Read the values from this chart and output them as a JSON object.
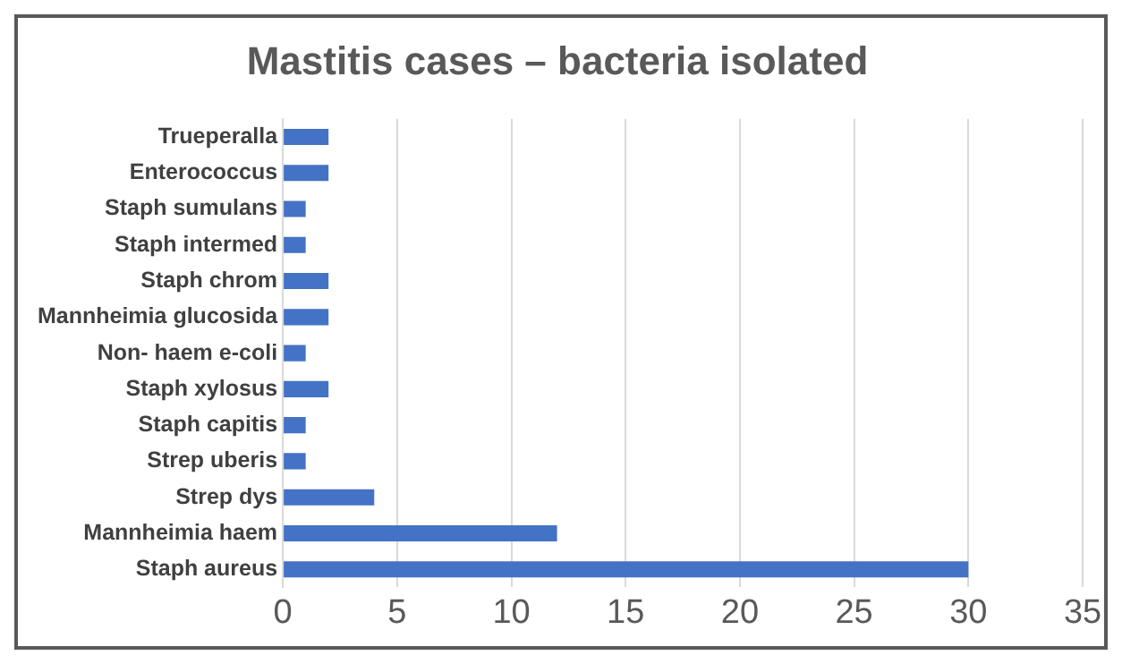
{
  "chart_data": {
    "type": "bar",
    "orientation": "horizontal",
    "title": "Mastitis cases – bacteria isolated",
    "categories": [
      "Trueperalla",
      "Enterococcus",
      "Staph sumulans",
      "Staph intermed",
      "Staph chrom",
      "Mannheimia glucosida",
      "Non- haem e-coli",
      "Staph xylosus",
      "Staph capitis",
      "Strep uberis",
      "Strep dys",
      "Mannheimia haem",
      "Staph aureus"
    ],
    "values": [
      2,
      2,
      1,
      1,
      2,
      2,
      1,
      2,
      1,
      1,
      4,
      12,
      30
    ],
    "color": "#4472c4",
    "xlim": [
      0,
      35
    ],
    "xticks": [
      0,
      5,
      10,
      15,
      20,
      25,
      30,
      35
    ],
    "grid": "x",
    "legend": false
  }
}
